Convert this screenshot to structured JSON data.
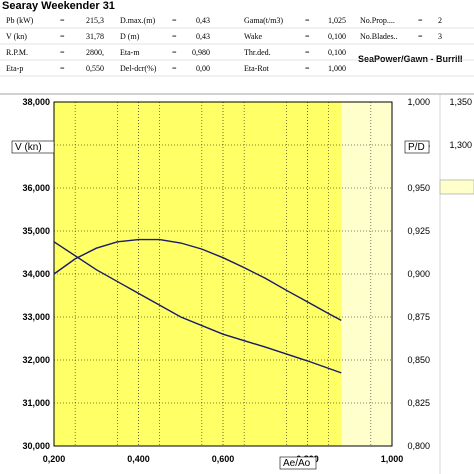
{
  "title": "Searay Weekender 31",
  "params": [
    {
      "label": "Pb (kW)",
      "eq": "=",
      "value": "215,3"
    },
    {
      "label": "V (kn)",
      "eq": "=",
      "value": "31,78"
    },
    {
      "label": "R.P.M.",
      "eq": "=",
      "value": "2800,"
    },
    {
      "label": "Eta-p",
      "eq": "=",
      "value": "0,550"
    },
    {
      "label": "D.max.(m)",
      "eq": "=",
      "value": "0,43"
    },
    {
      "label": "D (m)",
      "eq": "=",
      "value": "0,43"
    },
    {
      "label": "Eta-m",
      "eq": "=",
      "value": "0,980"
    },
    {
      "label": "Del-dcr(%)",
      "eq": "=",
      "value": "0,00"
    },
    {
      "label": "Gama(t/m3)",
      "eq": "=",
      "value": "1,025"
    },
    {
      "label": "Wake",
      "eq": "=",
      "value": "0,100"
    },
    {
      "label": "Thr.ded.",
      "eq": "=",
      "value": "0,100"
    },
    {
      "label": "Eta-Rot",
      "eq": "=",
      "value": "1,000"
    },
    {
      "label": "No.Prop....",
      "eq": "=",
      "value": "2"
    },
    {
      "label": "No.Blades..",
      "eq": "=",
      "value": "3"
    }
  ],
  "credit": "SeaPower/Gawn - Burrill",
  "chart_data": {
    "type": "line",
    "xlabel": "Ae/Ao",
    "ylabel_left": "V (kn)",
    "ylabel_right": "P/D",
    "x_ticks": [
      "0,200",
      "0,400",
      "0,600",
      "0,800",
      "1,000"
    ],
    "xlim": [
      0.2,
      1.0
    ],
    "y_left_ticks": [
      "38,000",
      "37,000",
      "36,000",
      "35,000",
      "34,000",
      "33,000",
      "32,000",
      "31,000",
      "30,000"
    ],
    "y_left_lim": [
      30,
      38
    ],
    "y_right_ticks": [
      "1,000",
      "0,975",
      "0,950",
      "0,925",
      "0,900",
      "0,875",
      "0,850",
      "0,825",
      "0,800"
    ],
    "y_right_lim": [
      0.8,
      1.0
    ],
    "y_far_right_ticks": [
      "1,350",
      "1,300"
    ],
    "shaded_region_x": [
      0.2,
      0.88
    ],
    "series": [
      {
        "axis": "left",
        "x": [
          0.2,
          0.25,
          0.3,
          0.35,
          0.4,
          0.45,
          0.5,
          0.55,
          0.6,
          0.65,
          0.7,
          0.75,
          0.8,
          0.85,
          0.88
        ],
        "values": [
          34.0,
          34.35,
          34.6,
          34.75,
          34.8,
          34.8,
          34.72,
          34.58,
          34.38,
          34.15,
          33.9,
          33.62,
          33.35,
          33.08,
          32.92
        ]
      },
      {
        "axis": "left",
        "x": [
          0.2,
          0.3,
          0.4,
          0.5,
          0.6,
          0.7,
          0.8,
          0.88
        ],
        "values": [
          34.75,
          34.1,
          33.55,
          33.0,
          32.6,
          32.3,
          31.98,
          31.7
        ]
      }
    ],
    "colors": {
      "plot": "#ffff66",
      "pale": "#ffffcc",
      "line": "#1a1a66"
    }
  }
}
